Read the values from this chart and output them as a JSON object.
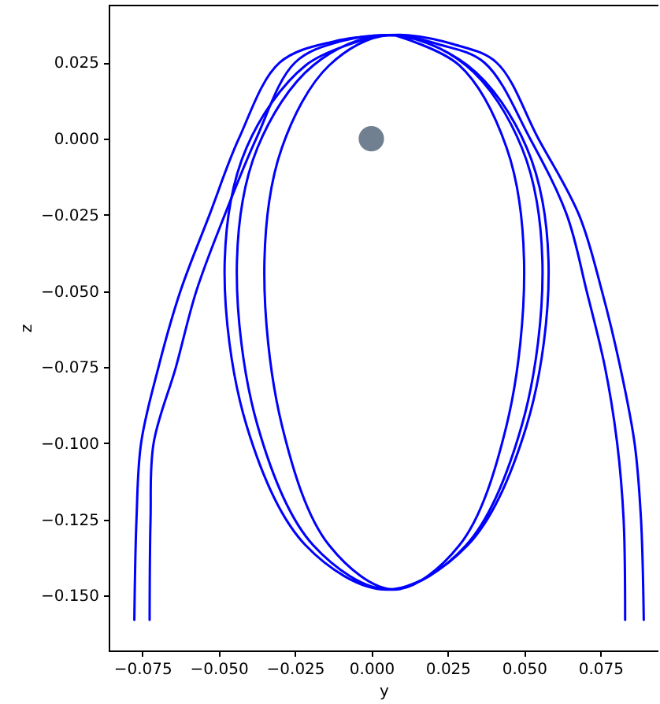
{
  "chart_data": {
    "type": "line",
    "xlabel": "y",
    "ylabel": "z",
    "xlim": [
      -0.086,
      0.094
    ],
    "ylim": [
      -0.168,
      0.044
    ],
    "xticks": [
      {
        "value": -0.075,
        "label": "−0.075"
      },
      {
        "value": -0.05,
        "label": "−0.050"
      },
      {
        "value": -0.025,
        "label": "−0.025"
      },
      {
        "value": 0,
        "label": "0.000"
      },
      {
        "value": 0.025,
        "label": "0.025"
      },
      {
        "value": 0.05,
        "label": "0.050"
      },
      {
        "value": 0.075,
        "label": "0.075"
      }
    ],
    "yticks": [
      {
        "value": -0.15,
        "label": "−0.150"
      },
      {
        "value": -0.125,
        "label": "−0.125"
      },
      {
        "value": -0.1,
        "label": "−0.100"
      },
      {
        "value": -0.075,
        "label": "−0.075"
      },
      {
        "value": -0.05,
        "label": "−0.050"
      },
      {
        "value": -0.025,
        "label": "−0.025"
      },
      {
        "value": 0,
        "label": "0.000"
      },
      {
        "value": 0.025,
        "label": "0.025"
      }
    ],
    "grid": false,
    "line_style": "solid",
    "series": [
      {
        "color": "#0000ff",
        "x": [
          -0.0776,
          -0.0769,
          -0.0754,
          -0.0697,
          -0.0625,
          -0.053,
          -0.0434,
          -0.03,
          -0.012,
          0.005,
          0.012,
          0.027,
          0.041,
          0.0547,
          0.068,
          0.0755,
          0.0815,
          0.0862,
          0.0883,
          0.0892
        ],
        "values": [
          -0.158,
          -0.125,
          -0.1,
          -0.075,
          -0.05,
          -0.025,
          0,
          0.025,
          0.032,
          0.034,
          0.034,
          0.031,
          0.025,
          0,
          -0.025,
          -0.05,
          -0.075,
          -0.1,
          -0.125,
          -0.158
        ]
      },
      {
        "color": "#0000ff",
        "x": [
          -0.0726,
          -0.0723,
          -0.0713,
          -0.064,
          -0.0573,
          -0.048,
          -0.0377,
          -0.025,
          -0.01,
          0.008,
          0.022,
          0.037,
          0.052,
          0.064,
          0.0705,
          0.0765,
          0.0805,
          0.0826,
          0.0831
        ],
        "values": [
          -0.158,
          -0.125,
          -0.1,
          -0.075,
          -0.05,
          -0.025,
          0,
          0.025,
          0.032,
          0.034,
          0.031,
          0.025,
          0,
          -0.025,
          -0.05,
          -0.075,
          -0.1,
          -0.125,
          -0.158
        ]
      },
      {
        "color": "#0000ff",
        "x": [
          0.0075,
          0.0288,
          0.0443,
          0.05,
          0.0443,
          0.0288,
          0.0075,
          -0.0138,
          -0.0293,
          -0.035,
          -0.0293,
          -0.0138,
          0.006,
          0.031,
          0.0493,
          0.056,
          0.0493,
          0.031,
          0.006,
          -0.019,
          -0.0373,
          -0.044,
          -0.0373,
          -0.019,
          0.005,
          0.0315,
          0.0509,
          0.058,
          0.0509,
          0.0315,
          0.005,
          -0.0215,
          -0.0409,
          -0.048,
          -0.0409,
          -0.0215,
          0.001
        ],
        "values": [
          0.034,
          0.0241,
          -0.003,
          -0.04,
          -0.094,
          -0.1335,
          -0.148,
          -0.1335,
          -0.094,
          -0.04,
          -0.003,
          0.0241,
          0.034,
          0.0241,
          -0.003,
          -0.04,
          -0.094,
          -0.1335,
          -0.148,
          -0.1335,
          -0.094,
          -0.04,
          -0.003,
          0.0241,
          0.034,
          0.0241,
          -0.003,
          -0.04,
          -0.094,
          -0.1335,
          -0.148,
          -0.1335,
          -0.094,
          -0.04,
          -0.003,
          0.0241,
          0.0335
        ]
      },
      {
        "type": "scatter",
        "marker": "circle",
        "color": "#708090",
        "x": [
          0
        ],
        "values": [
          0
        ]
      }
    ]
  }
}
